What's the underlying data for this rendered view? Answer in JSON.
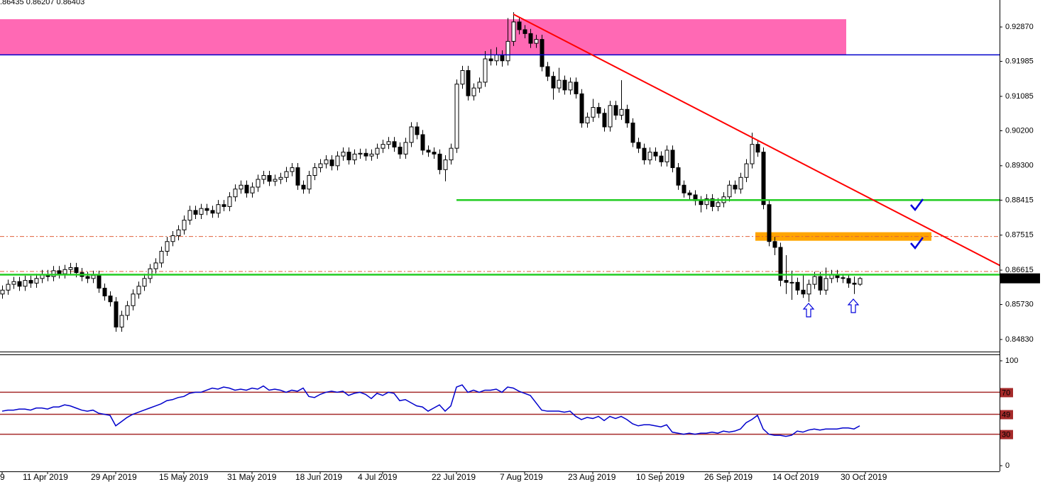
{
  "chart_data": {
    "type": "candlestick",
    "header": ".86435 0.86207 0.86403",
    "candles": [
      [
        0.86,
        0.8622,
        0.8588,
        0.861
      ],
      [
        0.861,
        0.8637,
        0.8598,
        0.8625
      ],
      [
        0.8625,
        0.8644,
        0.8613,
        0.8632
      ],
      [
        0.8632,
        0.8644,
        0.8608,
        0.862
      ],
      [
        0.862,
        0.8647,
        0.8608,
        0.8635
      ],
      [
        0.8635,
        0.8647,
        0.8616,
        0.8628
      ],
      [
        0.8628,
        0.8652,
        0.8616,
        0.864
      ],
      [
        0.864,
        0.8662,
        0.8628,
        0.865
      ],
      [
        0.865,
        0.8662,
        0.8633,
        0.8645
      ],
      [
        0.8645,
        0.8672,
        0.8633,
        0.866
      ],
      [
        0.866,
        0.8672,
        0.864,
        0.8652
      ],
      [
        0.8652,
        0.8675,
        0.864,
        0.8663
      ],
      [
        0.8663,
        0.868,
        0.8651,
        0.8668
      ],
      [
        0.8668,
        0.868,
        0.8643,
        0.8655
      ],
      [
        0.8655,
        0.8667,
        0.8633,
        0.8645
      ],
      [
        0.8645,
        0.8657,
        0.8628,
        0.864
      ],
      [
        0.864,
        0.866,
        0.8628,
        0.8648
      ],
      [
        0.8648,
        0.866,
        0.8603,
        0.8615
      ],
      [
        0.8615,
        0.8627,
        0.8583,
        0.8595
      ],
      [
        0.8595,
        0.8607,
        0.8568,
        0.858
      ],
      [
        0.858,
        0.8592,
        0.8503,
        0.8515
      ],
      [
        0.8515,
        0.8557,
        0.8503,
        0.8545
      ],
      [
        0.8545,
        0.8582,
        0.8533,
        0.857
      ],
      [
        0.857,
        0.8612,
        0.8558,
        0.86
      ],
      [
        0.86,
        0.8632,
        0.8588,
        0.862
      ],
      [
        0.862,
        0.8652,
        0.8608,
        0.864
      ],
      [
        0.864,
        0.8677,
        0.8628,
        0.8665
      ],
      [
        0.8665,
        0.8692,
        0.8653,
        0.868
      ],
      [
        0.868,
        0.8722,
        0.8668,
        0.871
      ],
      [
        0.871,
        0.8747,
        0.8698,
        0.8735
      ],
      [
        0.8735,
        0.8762,
        0.8723,
        0.875
      ],
      [
        0.875,
        0.8777,
        0.8738,
        0.8765
      ],
      [
        0.8765,
        0.8802,
        0.8753,
        0.879
      ],
      [
        0.879,
        0.8827,
        0.8778,
        0.8815
      ],
      [
        0.8815,
        0.8827,
        0.8793,
        0.8805
      ],
      [
        0.8805,
        0.8832,
        0.8793,
        0.882
      ],
      [
        0.882,
        0.8832,
        0.8803,
        0.8815
      ],
      [
        0.8815,
        0.8827,
        0.8796,
        0.8808
      ],
      [
        0.8808,
        0.8842,
        0.8796,
        0.883
      ],
      [
        0.883,
        0.8842,
        0.8813,
        0.8825
      ],
      [
        0.8825,
        0.8862,
        0.8813,
        0.885
      ],
      [
        0.885,
        0.8882,
        0.8838,
        0.887
      ],
      [
        0.887,
        0.8892,
        0.8858,
        0.888
      ],
      [
        0.888,
        0.8892,
        0.8848,
        0.886
      ],
      [
        0.886,
        0.8887,
        0.8848,
        0.8875
      ],
      [
        0.8875,
        0.8907,
        0.8863,
        0.8895
      ],
      [
        0.8895,
        0.8917,
        0.8883,
        0.8905
      ],
      [
        0.8905,
        0.8917,
        0.8878,
        0.889
      ],
      [
        0.889,
        0.8907,
        0.8878,
        0.8895
      ],
      [
        0.8895,
        0.8912,
        0.8883,
        0.89
      ],
      [
        0.89,
        0.8927,
        0.8888,
        0.8915
      ],
      [
        0.8915,
        0.8937,
        0.8903,
        0.8925
      ],
      [
        0.8925,
        0.8937,
        0.8868,
        0.888
      ],
      [
        0.888,
        0.8892,
        0.8858,
        0.887
      ],
      [
        0.887,
        0.8917,
        0.8858,
        0.8905
      ],
      [
        0.8905,
        0.8937,
        0.8893,
        0.8925
      ],
      [
        0.8925,
        0.8947,
        0.8913,
        0.8935
      ],
      [
        0.8935,
        0.8957,
        0.8923,
        0.8945
      ],
      [
        0.8945,
        0.8957,
        0.8918,
        0.893
      ],
      [
        0.893,
        0.8967,
        0.8918,
        0.8955
      ],
      [
        0.8955,
        0.8977,
        0.8943,
        0.8965
      ],
      [
        0.8965,
        0.8977,
        0.8933,
        0.8945
      ],
      [
        0.8945,
        0.8972,
        0.8933,
        0.896
      ],
      [
        0.896,
        0.8974,
        0.8948,
        0.8962
      ],
      [
        0.8962,
        0.8974,
        0.8943,
        0.8955
      ],
      [
        0.8955,
        0.8972,
        0.8943,
        0.896
      ],
      [
        0.896,
        0.8987,
        0.8948,
        0.8975
      ],
      [
        0.8975,
        0.8997,
        0.8963,
        0.8985
      ],
      [
        0.8985,
        0.9004,
        0.8973,
        0.8992
      ],
      [
        0.8992,
        0.9004,
        0.8966,
        0.8978
      ],
      [
        0.8978,
        0.899,
        0.8948,
        0.896
      ],
      [
        0.896,
        0.9002,
        0.8948,
        0.899
      ],
      [
        0.899,
        0.9042,
        0.8978,
        0.903
      ],
      [
        0.903,
        0.9042,
        0.8998,
        0.901
      ],
      [
        0.901,
        0.9022,
        0.8958,
        0.897
      ],
      [
        0.897,
        0.8982,
        0.8953,
        0.8965
      ],
      [
        0.8965,
        0.8977,
        0.8948,
        0.896
      ],
      [
        0.896,
        0.8972,
        0.8908,
        0.892
      ],
      [
        0.892,
        0.8957,
        0.889,
        0.8945
      ],
      [
        0.8945,
        0.8987,
        0.8933,
        0.8975
      ],
      [
        0.8975,
        0.9152,
        0.8963,
        0.914
      ],
      [
        0.914,
        0.9187,
        0.9128,
        0.9175
      ],
      [
        0.9175,
        0.9187,
        0.9098,
        0.911
      ],
      [
        0.911,
        0.9142,
        0.9098,
        0.913
      ],
      [
        0.913,
        0.9157,
        0.9118,
        0.9145
      ],
      [
        0.9145,
        0.9225,
        0.9133,
        0.9205
      ],
      [
        0.9205,
        0.923,
        0.9188,
        0.92
      ],
      [
        0.92,
        0.9235,
        0.9188,
        0.9215
      ],
      [
        0.9215,
        0.9227,
        0.9185,
        0.92
      ],
      [
        0.92,
        0.931,
        0.9188,
        0.925
      ],
      [
        0.925,
        0.9325,
        0.9238,
        0.93
      ],
      [
        0.93,
        0.9312,
        0.9268,
        0.928
      ],
      [
        0.928,
        0.9292,
        0.9258,
        0.927
      ],
      [
        0.927,
        0.9282,
        0.9233,
        0.9245
      ],
      [
        0.9245,
        0.9267,
        0.9233,
        0.9255
      ],
      [
        0.9255,
        0.9267,
        0.9173,
        0.9185
      ],
      [
        0.9185,
        0.9197,
        0.9148,
        0.916
      ],
      [
        0.916,
        0.9172,
        0.91,
        0.913
      ],
      [
        0.913,
        0.9182,
        0.9118,
        0.915
      ],
      [
        0.915,
        0.9162,
        0.9113,
        0.9125
      ],
      [
        0.9125,
        0.9157,
        0.9113,
        0.9145
      ],
      [
        0.9145,
        0.9157,
        0.9103,
        0.9115
      ],
      [
        0.9115,
        0.9127,
        0.9028,
        0.904
      ],
      [
        0.904,
        0.9067,
        0.9028,
        0.9055
      ],
      [
        0.9055,
        0.9102,
        0.9043,
        0.908
      ],
      [
        0.908,
        0.9092,
        0.9053,
        0.9065
      ],
      [
        0.9065,
        0.9077,
        0.9018,
        0.903
      ],
      [
        0.903,
        0.9097,
        0.9018,
        0.9085
      ],
      [
        0.9085,
        0.9097,
        0.9048,
        0.906
      ],
      [
        0.906,
        0.915,
        0.9048,
        0.9075
      ],
      [
        0.9075,
        0.9087,
        0.9028,
        0.904
      ],
      [
        0.904,
        0.9052,
        0.8978,
        0.899
      ],
      [
        0.899,
        0.9002,
        0.8963,
        0.8975
      ],
      [
        0.8975,
        0.8987,
        0.8933,
        0.8945
      ],
      [
        0.8945,
        0.8977,
        0.8933,
        0.8965
      ],
      [
        0.8965,
        0.8977,
        0.8943,
        0.8955
      ],
      [
        0.8955,
        0.8967,
        0.8928,
        0.894
      ],
      [
        0.894,
        0.8982,
        0.8928,
        0.897
      ],
      [
        0.897,
        0.8982,
        0.8913,
        0.8925
      ],
      [
        0.8925,
        0.8937,
        0.8868,
        0.888
      ],
      [
        0.888,
        0.8892,
        0.8848,
        0.886
      ],
      [
        0.886,
        0.8867,
        0.8843,
        0.8855
      ],
      [
        0.8855,
        0.8867,
        0.8828,
        0.884
      ],
      [
        0.884,
        0.8852,
        0.881,
        0.883
      ],
      [
        0.883,
        0.8857,
        0.8818,
        0.8845
      ],
      [
        0.8845,
        0.8857,
        0.8813,
        0.8825
      ],
      [
        0.8825,
        0.8847,
        0.8813,
        0.8835
      ],
      [
        0.8835,
        0.8862,
        0.8823,
        0.885
      ],
      [
        0.885,
        0.8892,
        0.8838,
        0.888
      ],
      [
        0.888,
        0.8892,
        0.8858,
        0.887
      ],
      [
        0.887,
        0.8912,
        0.8858,
        0.89
      ],
      [
        0.89,
        0.8947,
        0.8888,
        0.8935
      ],
      [
        0.8935,
        0.9015,
        0.8923,
        0.8985
      ],
      [
        0.8985,
        0.8997,
        0.8953,
        0.8965
      ],
      [
        0.8965,
        0.8977,
        0.8818,
        0.883
      ],
      [
        0.883,
        0.8842,
        0.8723,
        0.8735
      ],
      [
        0.8735,
        0.8747,
        0.87,
        0.872
      ],
      [
        0.872,
        0.8732,
        0.862,
        0.8635
      ],
      [
        0.8635,
        0.87,
        0.86,
        0.863
      ],
      [
        0.863,
        0.866,
        0.8585,
        0.863
      ],
      [
        0.863,
        0.8642,
        0.8598,
        0.861
      ],
      [
        0.861,
        0.865,
        0.859,
        0.86
      ],
      [
        0.86,
        0.8637,
        0.858,
        0.8625
      ],
      [
        0.8625,
        0.8657,
        0.8613,
        0.8645
      ],
      [
        0.8645,
        0.8657,
        0.8598,
        0.861
      ],
      [
        0.861,
        0.8668,
        0.8598,
        0.864
      ],
      [
        0.864,
        0.8662,
        0.8628,
        0.865
      ],
      [
        0.865,
        0.8662,
        0.863,
        0.8642
      ],
      [
        0.8642,
        0.8652,
        0.8628,
        0.864
      ],
      [
        0.864,
        0.865,
        0.8616,
        0.8628
      ],
      [
        0.8628,
        0.8645,
        0.86,
        0.8625
      ],
      [
        0.8625,
        0.8644,
        0.8621,
        0.864
      ]
    ],
    "up_color": "#ffffff",
    "down_color": "#000000",
    "ylim": [
      0.84519,
      0.93564
    ],
    "yticks": [
      {
        "value": 0.9287,
        "label": "0.92870"
      },
      {
        "value": 0.91985,
        "label": "0.91985"
      },
      {
        "value": 0.91085,
        "label": "0.91085"
      },
      {
        "value": 0.902,
        "label": "0.90200"
      },
      {
        "value": 0.893,
        "label": "0.89300"
      },
      {
        "value": 0.88415,
        "label": "0.88415"
      },
      {
        "value": 0.87515,
        "label": "0.87515"
      },
      {
        "value": 0.86615,
        "label": "0.86615"
      },
      {
        "value": 0.8573,
        "label": "0.85730"
      },
      {
        "value": 0.8483,
        "label": "0.84830"
      }
    ],
    "last_price": {
      "value": 0.86403,
      "label": "0.86403"
    },
    "dates": [
      {
        "index": 0,
        "label": "9"
      },
      {
        "index": 8,
        "label": "11 Apr 2019"
      },
      {
        "index": 20,
        "label": "29 Apr 2019"
      },
      {
        "index": 32,
        "label": "15 May 2019"
      },
      {
        "index": 44,
        "label": "31 May 2019"
      },
      {
        "index": 56,
        "label": "18 Jun 2019"
      },
      {
        "index": 67,
        "label": "4 Jul 2019"
      },
      {
        "index": 80,
        "label": "22 Jul 2019"
      },
      {
        "index": 92,
        "label": "7 Aug 2019"
      },
      {
        "index": 104,
        "label": "23 Aug 2019"
      },
      {
        "index": 116,
        "label": "10 Sep 2019"
      },
      {
        "index": 128,
        "label": "26 Sep 2019"
      },
      {
        "index": 140,
        "label": "14 Oct 2019"
      },
      {
        "index": 152,
        "label": "30 Oct 2019"
      }
    ],
    "zones": [
      {
        "from": 0.9307,
        "to": 0.9215,
        "start": 0,
        "end": 149,
        "color": "#ff69b4"
      },
      {
        "from": 0.8759,
        "to": 0.8737,
        "start": 133,
        "end": 164,
        "color": "#ffa500"
      }
    ],
    "levels": [
      {
        "value": 0.92152,
        "start": 0,
        "color": "#0000cc"
      },
      {
        "value": 0.88417,
        "start": 80,
        "color": "#22cc22"
      },
      {
        "value": 0.86498,
        "start": 0,
        "color": "#22cc22"
      }
    ],
    "dashed_levels": [
      {
        "value": 0.8748,
        "color": "#e0603a"
      },
      {
        "value": 0.8658,
        "color": "#e0603a"
      }
    ],
    "trendline": {
      "start": [
        90,
        0.932
      ],
      "end": [
        176,
        0.8671
      ],
      "color": "#ff0000"
    },
    "rsi": {
      "values": [
        52,
        53,
        53,
        54,
        54,
        53,
        55,
        55,
        54,
        56,
        56,
        58,
        57,
        55,
        53,
        52,
        53,
        50,
        49,
        48,
        38,
        42,
        46,
        49,
        51,
        53,
        55,
        57,
        59,
        62,
        63,
        65,
        66,
        69,
        70,
        70,
        72,
        74,
        73,
        75,
        74,
        72,
        73,
        72,
        74,
        73,
        76,
        72,
        73,
        72,
        70,
        72,
        71,
        74,
        66,
        65,
        68,
        70,
        71,
        70,
        71,
        67,
        69,
        70,
        68,
        64,
        69,
        67,
        70,
        69,
        62,
        63,
        60,
        57,
        56,
        52,
        55,
        58,
        52,
        57,
        75,
        77,
        70,
        72,
        70,
        72,
        72,
        73,
        70,
        75,
        74,
        71,
        69,
        67,
        60,
        53,
        52,
        52,
        52,
        51,
        52,
        47,
        44,
        46,
        45,
        47,
        43,
        47,
        45,
        47,
        44,
        40,
        38,
        39,
        39,
        38,
        37,
        39,
        32,
        31,
        30,
        31,
        30,
        31,
        31,
        32,
        31,
        33,
        32,
        33,
        35,
        41,
        44,
        48,
        35,
        30,
        29,
        29,
        28,
        29,
        33,
        32,
        34,
        35,
        34,
        35,
        35,
        35,
        36,
        36,
        35,
        38
      ],
      "color": "#0000cc",
      "ylim": [
        -5.4,
        106.1
      ],
      "yticks": [
        100,
        0
      ],
      "levels": [
        70,
        49,
        30
      ],
      "level_color": "#a52a2a"
    }
  }
}
